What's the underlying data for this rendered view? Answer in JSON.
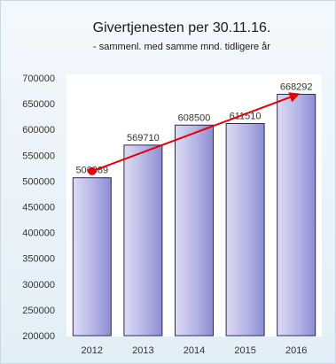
{
  "chart_data": {
    "type": "bar",
    "title": "Givertjenesten per 30.11.16.",
    "subtitle": "- sammenl. med samme mnd. tidligere år",
    "categories": [
      "2012",
      "2013",
      "2014",
      "2015",
      "2016"
    ],
    "values": [
      506389,
      569710,
      608500,
      611510,
      668292
    ],
    "data_labels": [
      "506389",
      "569710",
      "608500",
      "611510",
      "668292"
    ],
    "ylim": [
      200000,
      700000
    ],
    "yticks": [
      "200000",
      "250000",
      "300000",
      "350000",
      "400000",
      "450000",
      "500000",
      "550000",
      "600000",
      "650000",
      "700000"
    ],
    "grid": false,
    "trend_arrow": {
      "from": "2012",
      "to": "2016",
      "start_value": 519000,
      "end_value": 668292
    },
    "colors": {
      "background": "#ffffff",
      "plot_background": "#ffffff",
      "outer_background": "#e6f1f8",
      "bar_fill_light": "#dcdcf3",
      "bar_fill_dark": "#8c8cd2",
      "bar_border": "#2a2a5a",
      "trend": "#e60000"
    }
  }
}
